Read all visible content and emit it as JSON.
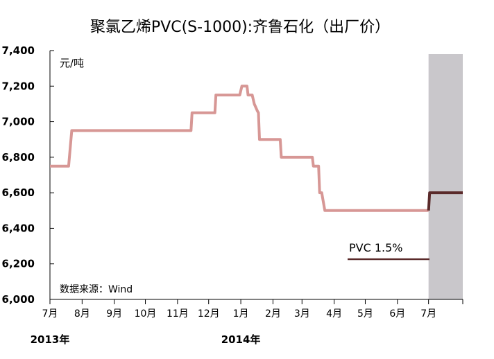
{
  "chart_data": {
    "type": "line",
    "title": "聚氯乙烯PVC(S-1000):齐鲁石化（出厂价）",
    "unit_label": "元/吨",
    "source_label": "数据来源：Wind",
    "ylim": [
      6000,
      7400
    ],
    "y_ticks": [
      {
        "value": 6000,
        "label": "6,000"
      },
      {
        "value": 6200,
        "label": "6,200"
      },
      {
        "value": 6400,
        "label": "6,400"
      },
      {
        "value": 6600,
        "label": "6,600"
      },
      {
        "value": 6800,
        "label": "6,800"
      },
      {
        "value": 7000,
        "label": "7,000"
      },
      {
        "value": 7200,
        "label": "7,200"
      },
      {
        "value": 7400,
        "label": "7,400"
      }
    ],
    "x_ticks": [
      {
        "date": "2013-07",
        "label": "7月"
      },
      {
        "date": "2013-08",
        "label": "8月"
      },
      {
        "date": "2013-09",
        "label": "9月"
      },
      {
        "date": "2013-10",
        "label": "10月"
      },
      {
        "date": "2013-11",
        "label": "11月"
      },
      {
        "date": "2013-12",
        "label": "12月"
      },
      {
        "date": "2014-01",
        "label": "1月"
      },
      {
        "date": "2014-02",
        "label": "2月"
      },
      {
        "date": "2014-03",
        "label": "3月"
      },
      {
        "date": "2014-04",
        "label": "4月"
      },
      {
        "date": "2014-05",
        "label": "5月"
      },
      {
        "date": "2014-06",
        "label": "6月"
      },
      {
        "date": "2014-07",
        "label": "7月"
      }
    ],
    "year_labels": [
      {
        "date": "2013-07",
        "label": "2013年"
      },
      {
        "date": "2014-01",
        "label": "2014年"
      }
    ],
    "shaded_region": {
      "from": "2014-07-01",
      "to": "2014-08-03",
      "color": "#c9c7cb"
    },
    "legend": {
      "label": "PVC 1.5%",
      "color": "#5a2a2a"
    },
    "series": [
      {
        "color": "#d79795",
        "points": [
          {
            "x": "2013-07-01",
            "y": 6750
          },
          {
            "x": "2013-07-19",
            "y": 6750
          },
          {
            "x": "2013-07-22",
            "y": 6950
          },
          {
            "x": "2013-11-14",
            "y": 6950
          },
          {
            "x": "2013-11-15",
            "y": 7050
          },
          {
            "x": "2013-12-07",
            "y": 7050
          },
          {
            "x": "2013-12-08",
            "y": 7150
          },
          {
            "x": "2013-12-31",
            "y": 7150
          },
          {
            "x": "2014-01-02",
            "y": 7200
          },
          {
            "x": "2014-01-07",
            "y": 7200
          },
          {
            "x": "2014-01-08",
            "y": 7150
          },
          {
            "x": "2014-01-12",
            "y": 7150
          },
          {
            "x": "2014-01-14",
            "y": 7100
          },
          {
            "x": "2014-01-17",
            "y": 7060
          },
          {
            "x": "2014-01-18",
            "y": 7050
          },
          {
            "x": "2014-01-19",
            "y": 6900
          },
          {
            "x": "2014-02-08",
            "y": 6900
          },
          {
            "x": "2014-02-09",
            "y": 6800
          },
          {
            "x": "2014-03-11",
            "y": 6800
          },
          {
            "x": "2014-03-12",
            "y": 6750
          },
          {
            "x": "2014-03-17",
            "y": 6750
          },
          {
            "x": "2014-03-18",
            "y": 6600
          },
          {
            "x": "2014-03-20",
            "y": 6600
          },
          {
            "x": "2014-03-23",
            "y": 6500
          },
          {
            "x": "2014-07-01",
            "y": 6500
          }
        ]
      },
      {
        "color": "#5a2a2a",
        "points": [
          {
            "x": "2014-07-01",
            "y": 6500
          },
          {
            "x": "2014-07-02",
            "y": 6600
          },
          {
            "x": "2014-08-03",
            "y": 6600
          }
        ]
      }
    ]
  }
}
